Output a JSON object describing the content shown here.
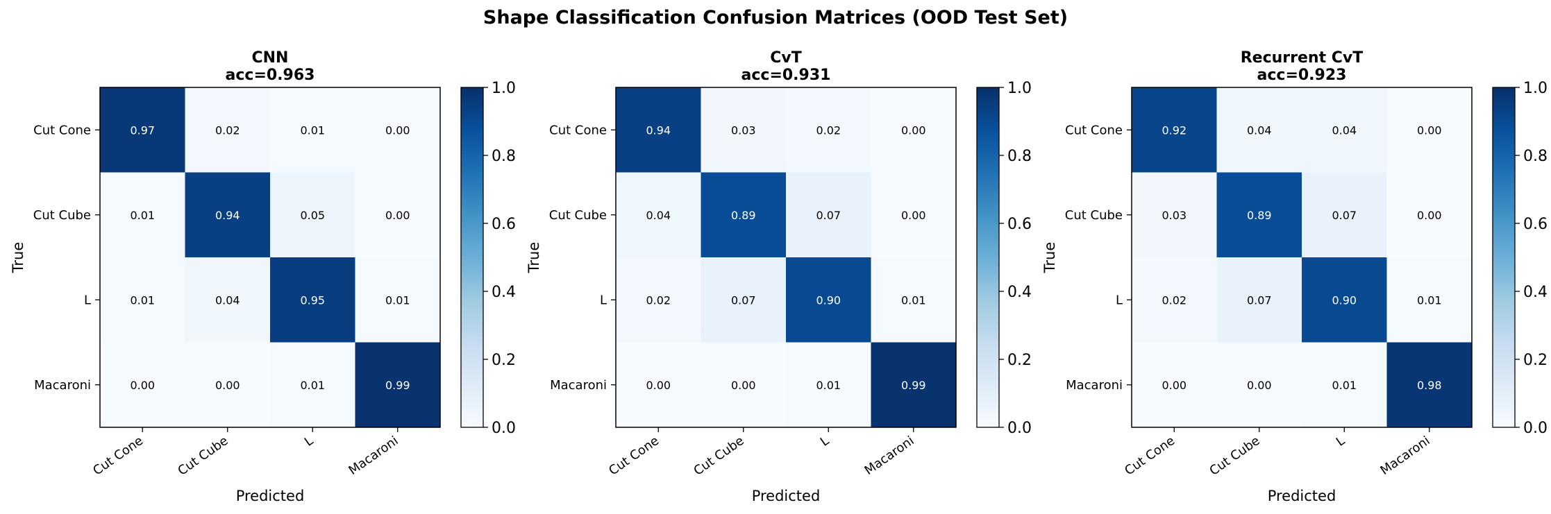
{
  "figure_title": "Shape Classification Confusion Matrices (OOD Test Set)",
  "colormap": "Blues",
  "colors": {
    "text_dark": "#000000",
    "text_light": "#ffffff",
    "frame": "#000000"
  },
  "chart_data": [
    {
      "type": "heatmap",
      "title": "CNN",
      "subtitle": "acc=0.963",
      "xlabel": "Predicted",
      "ylabel": "True",
      "x_categories": [
        "Cut Cone",
        "Cut Cube",
        "L",
        "Macaroni"
      ],
      "y_categories": [
        "Cut Cone",
        "Cut Cube",
        "L",
        "Macaroni"
      ],
      "values": [
        [
          0.97,
          0.02,
          0.01,
          0.0
        ],
        [
          0.01,
          0.94,
          0.05,
          0.0
        ],
        [
          0.01,
          0.04,
          0.95,
          0.01
        ],
        [
          0.0,
          0.0,
          0.01,
          0.99
        ]
      ],
      "value_labels": [
        [
          "0.97",
          "0.02",
          "0.01",
          "0.00"
        ],
        [
          "0.01",
          "0.94",
          "0.05",
          "0.00"
        ],
        [
          "0.01",
          "0.04",
          "0.95",
          "0.01"
        ],
        [
          "0.00",
          "0.00",
          "0.01",
          "0.99"
        ]
      ],
      "colorbar": {
        "range": [
          0.0,
          1.0
        ],
        "ticks": [
          "0.0",
          "0.2",
          "0.4",
          "0.6",
          "0.8",
          "1.0"
        ]
      }
    },
    {
      "type": "heatmap",
      "title": "CvT",
      "subtitle": "acc=0.931",
      "xlabel": "Predicted",
      "ylabel": "True",
      "x_categories": [
        "Cut Cone",
        "Cut Cube",
        "L",
        "Macaroni"
      ],
      "y_categories": [
        "Cut Cone",
        "Cut Cube",
        "L",
        "Macaroni"
      ],
      "values": [
        [
          0.94,
          0.03,
          0.02,
          0.0
        ],
        [
          0.04,
          0.89,
          0.07,
          0.0
        ],
        [
          0.02,
          0.07,
          0.9,
          0.01
        ],
        [
          0.0,
          0.0,
          0.01,
          0.99
        ]
      ],
      "value_labels": [
        [
          "0.94",
          "0.03",
          "0.02",
          "0.00"
        ],
        [
          "0.04",
          "0.89",
          "0.07",
          "0.00"
        ],
        [
          "0.02",
          "0.07",
          "0.90",
          "0.01"
        ],
        [
          "0.00",
          "0.00",
          "0.01",
          "0.99"
        ]
      ],
      "colorbar": {
        "range": [
          0.0,
          1.0
        ],
        "ticks": [
          "0.0",
          "0.2",
          "0.4",
          "0.6",
          "0.8",
          "1.0"
        ]
      }
    },
    {
      "type": "heatmap",
      "title": "Recurrent CvT",
      "subtitle": "acc=0.923",
      "xlabel": "Predicted",
      "ylabel": "True",
      "x_categories": [
        "Cut Cone",
        "Cut Cube",
        "L",
        "Macaroni"
      ],
      "y_categories": [
        "Cut Cone",
        "Cut Cube",
        "L",
        "Macaroni"
      ],
      "values": [
        [
          0.92,
          0.04,
          0.04,
          0.0
        ],
        [
          0.03,
          0.89,
          0.07,
          0.0
        ],
        [
          0.02,
          0.07,
          0.9,
          0.01
        ],
        [
          0.0,
          0.0,
          0.01,
          0.98
        ]
      ],
      "value_labels": [
        [
          "0.92",
          "0.04",
          "0.04",
          "0.00"
        ],
        [
          "0.03",
          "0.89",
          "0.07",
          "0.00"
        ],
        [
          "0.02",
          "0.07",
          "0.90",
          "0.01"
        ],
        [
          "0.00",
          "0.00",
          "0.01",
          "0.98"
        ]
      ],
      "colorbar": {
        "range": [
          0.0,
          1.0
        ],
        "ticks": [
          "0.0",
          "0.2",
          "0.4",
          "0.6",
          "0.8",
          "1.0"
        ]
      }
    }
  ]
}
